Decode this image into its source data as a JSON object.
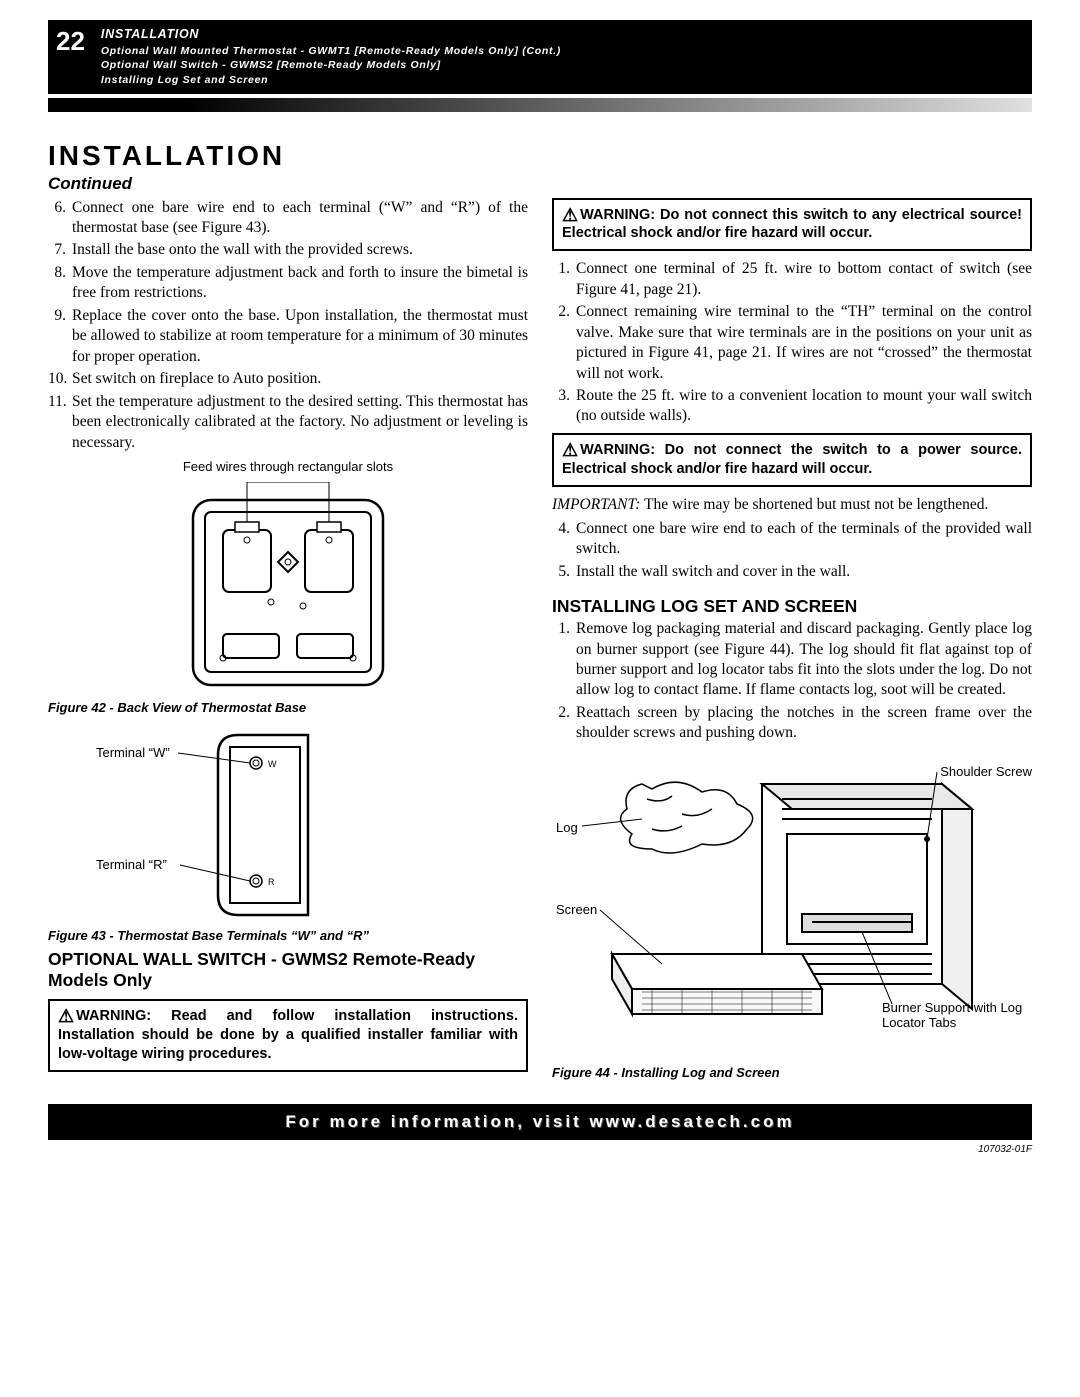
{
  "header": {
    "page_number": "22",
    "section": "INSTALLATION",
    "sub1": "Optional Wall Mounted Thermostat - GWMT1 [Remote-Ready Models Only] (Cont.)",
    "sub2": "Optional Wall Switch - GWMS2 [Remote-Ready Models Only]",
    "sub3": "Installing Log Set and Screen"
  },
  "title": "INSTALLATION",
  "continued": "Continued",
  "left_steps": [
    {
      "n": "6.",
      "t": "Connect one bare wire end to each terminal (“W” and “R”) of the thermostat base (see Figure 43)."
    },
    {
      "n": "7.",
      "t": "Install the base onto the wall with the provided screws."
    },
    {
      "n": "8.",
      "t": "Move the temperature adjustment back and forth to insure the bimetal is free from restrictions."
    },
    {
      "n": "9.",
      "t": "Replace the cover onto the base. Upon installation, the thermostat must be allowed to stabilize at room temperature for a minimum of 30 minutes for proper operation."
    },
    {
      "n": "10.",
      "t": "Set switch on fireplace to Auto position."
    },
    {
      "n": "11.",
      "t": "Set the temperature adjustment to the desired setting. This thermostat has been electronically calibrated at the factory. No adjustment or leveling is necessary."
    }
  ],
  "fig42_annot": "Feed wires through rectangular slots",
  "fig42_caption": "Figure 42 - Back View of Thermostat Base",
  "fig43_label_w": "Terminal “W”",
  "fig43_label_r": "Terminal “R”",
  "fig43_caption": "Figure 43 - Thermostat Base Terminals “W” and “R”",
  "left_sect_title": "OPTIONAL WALL SWITCH - GWMS2 Remote-Ready Models Only",
  "left_warning": "WARNING: Read and follow installation instructions. Installation should be done by a qualified installer familiar with low-voltage wiring procedures.",
  "right_warning1": "WARNING: Do not connect this switch to any electrical source! Electrical shock and/or fire hazard will occur.",
  "right_steps_a": [
    {
      "n": "1.",
      "t": "Connect one terminal of 25 ft. wire to bottom contact of switch (see Figure 41, page 21)."
    },
    {
      "n": "2.",
      "t": "Connect remaining wire terminal to the “TH” terminal on the control valve. Make sure that wire terminals are in the positions on your unit as pictured in Figure 41, page 21. If wires are not “crossed” the thermostat will not work."
    },
    {
      "n": "3.",
      "t": "Route the 25 ft. wire to a convenient location to mount your wall switch (no outside walls)."
    }
  ],
  "right_warning2": "WARNING: Do not connect the switch to a power source. Electrical shock and/or fire hazard will occur.",
  "important_label": "IMPORTANT:",
  "important_text": "The wire may be shortened but must not be lengthened.",
  "right_steps_b": [
    {
      "n": "4.",
      "t": "Connect one bare wire end to each of the terminals of the provided wall switch."
    },
    {
      "n": "5.",
      "t": "Install the wall switch and cover in the wall."
    }
  ],
  "right_sect_title": "INSTALLING LOG SET AND SCREEN",
  "right_steps_c": [
    {
      "n": "1.",
      "t": "Remove log packaging material and discard packaging. Gently place log on burner support (see Figure 44). The log should fit flat against top of burner support and log locator tabs fit into the slots under the log. Do not allow log to contact flame. If flame contacts log, soot will be created."
    },
    {
      "n": "2.",
      "t": "Reattach screen by placing the notches in the screen frame over the shoulder screws and pushing down."
    }
  ],
  "fig44_label_log": "Log",
  "fig44_label_screen": "Screen",
  "fig44_label_shoulder": "Shoulder Screw",
  "fig44_label_burner": "Burner Support with Log Locator Tabs",
  "fig44_caption": "Figure 44 - Installing Log and Screen",
  "footer": "For more information, visit www.desatech.com",
  "doc_code": "107032-01F",
  "colors": {
    "black": "#000000",
    "white": "#ffffff"
  }
}
